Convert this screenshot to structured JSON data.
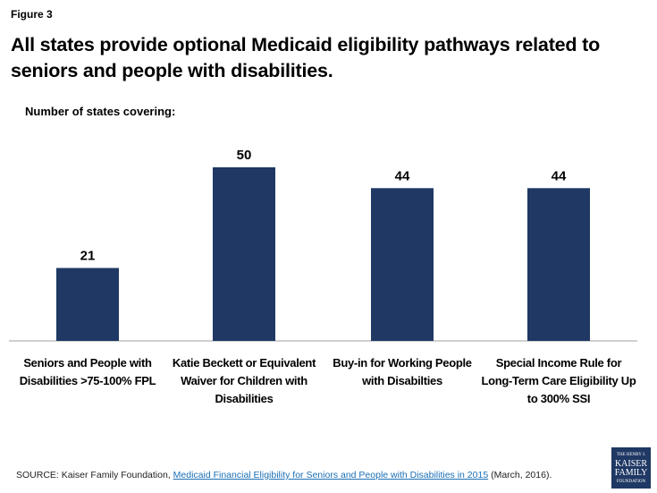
{
  "chart_data": {
    "type": "bar",
    "figure_label": "Figure 3",
    "title": "All states provide optional Medicaid eligibility pathways related to seniors and people with disabilities.",
    "subtitle": "Number of states covering:",
    "categories": [
      "Seniors and People with Disabilities >75-100% FPL",
      "Katie Beckett or Equivalent Waiver for Children with Disabilities",
      "Buy-in for Working People with Disabilties",
      "Special Income Rule for Long-Term Care Eligibility Up to 300% SSI"
    ],
    "values": [
      21,
      50,
      44,
      44
    ],
    "color": "#1f3864",
    "source_prefix": "SOURCE:  Kaiser Family Foundation,",
    "source_link": "Medicaid Financial Eligibility for Seniors and People with Disabilities in 2015",
    "source_suffix": "(March, 2016).",
    "logo": [
      "THE HENRY J.",
      "KAISER",
      "FAMILY",
      "FOUNDATION"
    ]
  }
}
